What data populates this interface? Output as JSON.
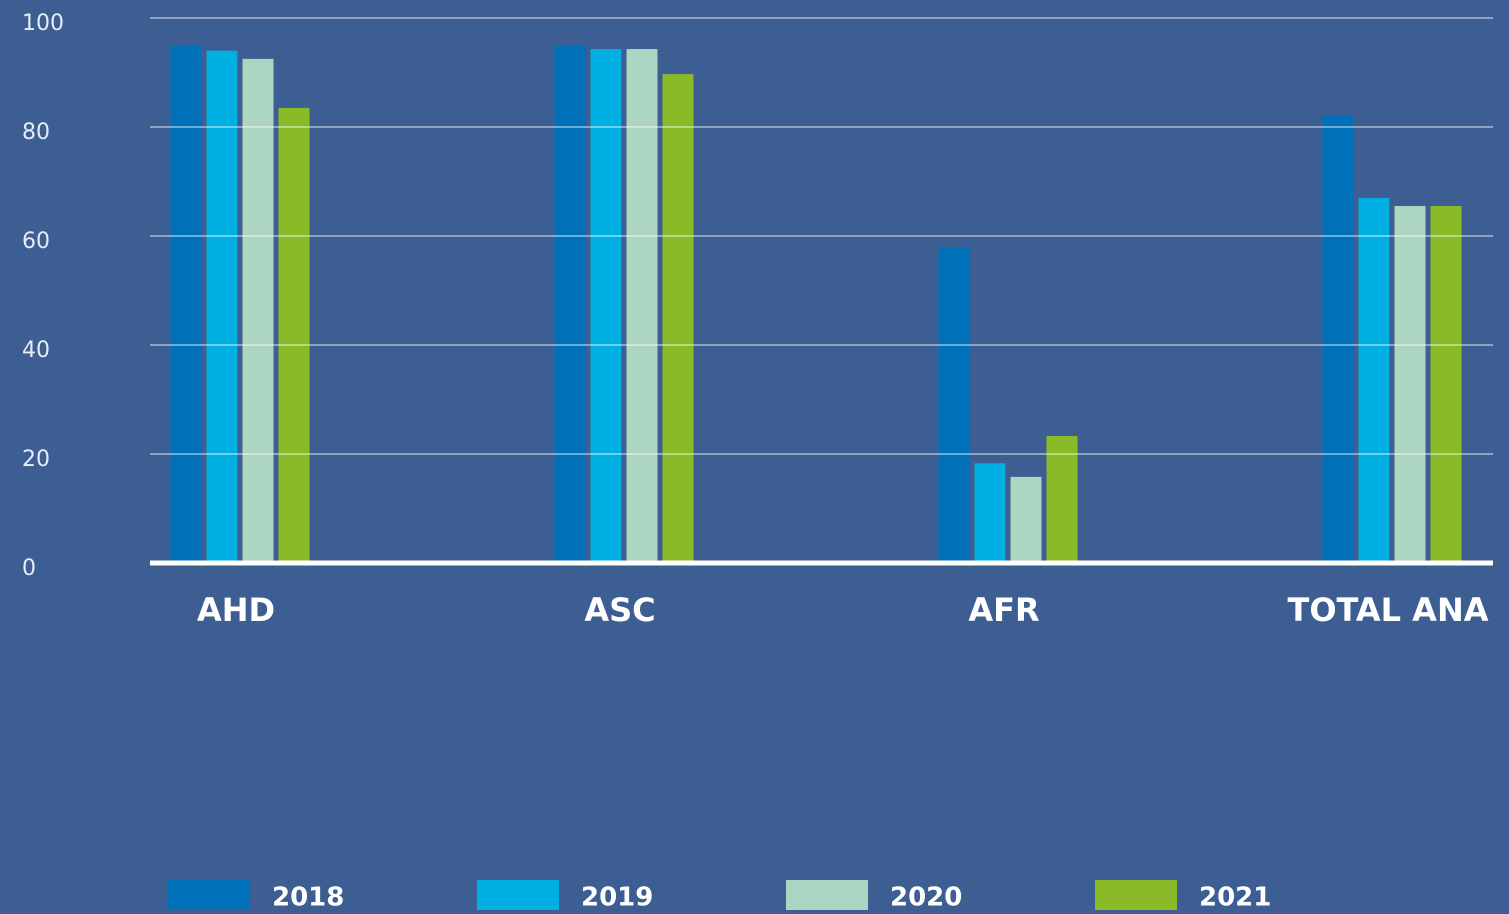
{
  "chart_data": {
    "type": "bar",
    "categories": [
      "AHD",
      "ASC",
      "AFR",
      "TOTAL ANA"
    ],
    "series": [
      {
        "name": "2018",
        "color": "#0070b8",
        "values": [
          95,
          95,
          57.8,
          82.2
        ]
      },
      {
        "name": "2019",
        "color": "#00b0e2",
        "values": [
          94,
          94.3,
          18.3,
          67
        ]
      },
      {
        "name": "2020",
        "color": "#acd6c2",
        "values": [
          92.5,
          94.3,
          15.8,
          65.5
        ]
      },
      {
        "name": "2021",
        "color": "#8aba28",
        "values": [
          83.5,
          89.7,
          23.3,
          65.5
        ]
      }
    ],
    "ylim": [
      0,
      100
    ],
    "yticks": [
      0,
      20,
      40,
      60,
      80,
      100
    ],
    "grid": true,
    "legend": "bottom"
  }
}
